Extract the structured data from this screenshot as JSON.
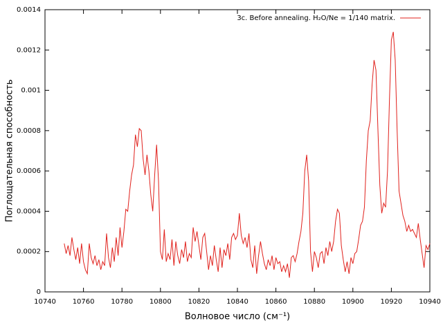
{
  "chart_data": {
    "type": "line",
    "xlabel": "Волновое число (см⁻¹)",
    "ylabel": "Поглощательная способность",
    "legend": "top right",
    "xlim": [
      10740,
      10940
    ],
    "xticks": [
      10740,
      10760,
      10780,
      10800,
      10820,
      10840,
      10860,
      10880,
      10900,
      10920,
      10940
    ],
    "ylim": [
      0,
      0.0014
    ],
    "yticks": [
      0,
      0.0002,
      0.0004,
      0.0006,
      0.0008,
      0.001,
      0.0012,
      0.0014
    ],
    "x": [
      10750,
      10751,
      10752,
      10753,
      10754,
      10755,
      10756,
      10757,
      10758,
      10759,
      10760,
      10761,
      10762,
      10763,
      10764,
      10765,
      10766,
      10767,
      10768,
      10769,
      10770,
      10771,
      10772,
      10773,
      10774,
      10775,
      10776,
      10777,
      10778,
      10779,
      10780,
      10781,
      10782,
      10783,
      10784,
      10785,
      10786,
      10787,
      10788,
      10789,
      10790,
      10791,
      10792,
      10793,
      10794,
      10795,
      10796,
      10797,
      10798,
      10799,
      10800,
      10801,
      10802,
      10803,
      10804,
      10805,
      10806,
      10807,
      10808,
      10809,
      10810,
      10811,
      10812,
      10813,
      10814,
      10815,
      10816,
      10817,
      10818,
      10819,
      10820,
      10821,
      10822,
      10823,
      10824,
      10825,
      10826,
      10827,
      10828,
      10829,
      10830,
      10831,
      10832,
      10833,
      10834,
      10835,
      10836,
      10837,
      10838,
      10839,
      10840,
      10841,
      10842,
      10843,
      10844,
      10845,
      10846,
      10847,
      10848,
      10849,
      10850,
      10851,
      10852,
      10853,
      10854,
      10855,
      10856,
      10857,
      10858,
      10859,
      10860,
      10861,
      10862,
      10863,
      10864,
      10865,
      10866,
      10867,
      10868,
      10869,
      10870,
      10871,
      10872,
      10873,
      10874,
      10875,
      10876,
      10877,
      10878,
      10879,
      10880,
      10881,
      10882,
      10883,
      10884,
      10885,
      10886,
      10887,
      10888,
      10889,
      10890,
      10891,
      10892,
      10893,
      10894,
      10895,
      10896,
      10897,
      10898,
      10899,
      10900,
      10901,
      10902,
      10903,
      10904,
      10905,
      10906,
      10907,
      10908,
      10909,
      10910,
      10911,
      10912,
      10913,
      10914,
      10915,
      10916,
      10917,
      10918,
      10919,
      10920,
      10921,
      10922,
      10923,
      10924,
      10925,
      10926,
      10927,
      10928,
      10929,
      10930,
      10931,
      10932,
      10933,
      10934,
      10935,
      10936,
      10937,
      10938,
      10939,
      10940
    ],
    "series": [
      {
        "name": "3c. Before annealing. H₂O/Ne = 1/140 matrix.",
        "color": "#e0201b",
        "values": [
          0.00024,
          0.00019,
          0.00023,
          0.00018,
          0.00027,
          0.00021,
          0.00016,
          0.00022,
          0.00014,
          0.00024,
          0.00015,
          0.00011,
          9e-05,
          0.00024,
          0.00017,
          0.00014,
          0.00018,
          0.00013,
          0.00016,
          0.00011,
          0.00015,
          0.00013,
          0.00029,
          0.00017,
          0.00012,
          0.00022,
          0.00015,
          0.00027,
          0.00018,
          0.00032,
          0.00022,
          0.0003,
          0.00041,
          0.0004,
          0.0005,
          0.00058,
          0.00063,
          0.00078,
          0.00072,
          0.00081,
          0.0008,
          0.00066,
          0.00058,
          0.00068,
          0.0006,
          0.00048,
          0.0004,
          0.00058,
          0.00073,
          0.00055,
          0.0002,
          0.00016,
          0.00031,
          0.00015,
          0.00019,
          0.00016,
          0.00026,
          0.00013,
          0.00025,
          0.00018,
          0.00014,
          0.00021,
          0.00017,
          0.00025,
          0.00015,
          0.00019,
          0.00017,
          0.00032,
          0.00025,
          0.0003,
          0.00023,
          0.00016,
          0.00027,
          0.00029,
          0.0002,
          0.00011,
          0.00018,
          0.00013,
          0.00023,
          0.00016,
          0.0001,
          0.00022,
          0.00012,
          0.00021,
          0.00018,
          0.00024,
          0.00016,
          0.00027,
          0.00029,
          0.00026,
          0.00028,
          0.00039,
          0.00028,
          0.00024,
          0.00027,
          0.00022,
          0.00029,
          0.00016,
          0.00012,
          0.00023,
          9e-05,
          0.00018,
          0.00025,
          0.00019,
          0.00014,
          0.00011,
          0.00016,
          0.00013,
          0.00018,
          0.00011,
          0.00017,
          0.00014,
          0.00015,
          0.0001,
          0.00013,
          0.0001,
          0.00014,
          7e-05,
          0.00017,
          0.00018,
          0.00015,
          0.00019,
          0.00025,
          0.0003,
          0.00039,
          0.0006,
          0.00068,
          0.00055,
          0.0002,
          0.0001,
          0.0002,
          0.00017,
          0.00012,
          0.00019,
          0.0002,
          0.00014,
          0.00022,
          0.00018,
          0.00025,
          0.0002,
          0.00025,
          0.00035,
          0.00041,
          0.00039,
          0.00023,
          0.00016,
          0.0001,
          0.00015,
          9e-05,
          0.00017,
          0.00014,
          0.00019,
          0.0002,
          0.00026,
          0.00033,
          0.00035,
          0.00042,
          0.00065,
          0.0008,
          0.00085,
          0.00103,
          0.00115,
          0.0011,
          0.00081,
          0.00053,
          0.00039,
          0.00044,
          0.00042,
          0.0006,
          0.00095,
          0.00125,
          0.00129,
          0.00115,
          0.0008,
          0.0005,
          0.00044,
          0.00038,
          0.00035,
          0.0003,
          0.00033,
          0.0003,
          0.00031,
          0.00029,
          0.00027,
          0.00034,
          0.00026,
          0.00019,
          0.00012,
          0.00023,
          0.00021,
          0.00024
        ]
      }
    ]
  }
}
